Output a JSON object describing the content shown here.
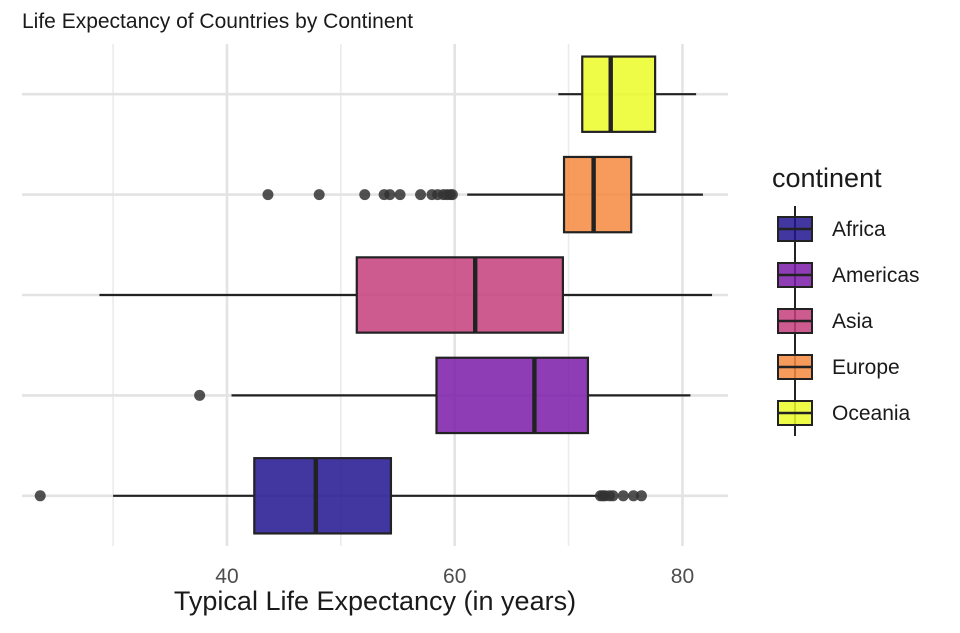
{
  "chart_data": {
    "type": "boxplot",
    "orientation": "horizontal",
    "title": "Life Expectancy of Countries by Continent",
    "xlabel": "Typical Life Expectancy (in years)",
    "ylabel": "",
    "xlim": [
      22,
      84
    ],
    "x_ticks": [
      40,
      60,
      80
    ],
    "x_minor_grid": [
      30,
      50,
      70
    ],
    "grid": true,
    "legend": {
      "title": "continent",
      "position": "right"
    },
    "series": [
      {
        "name": "Africa",
        "color": "#211391",
        "whisker_low": 30.0,
        "q1": 42.4,
        "median": 47.8,
        "q3": 54.4,
        "whisker_high": 73.0,
        "outliers": [
          23.6,
          72.8,
          73.0,
          73.2,
          73.6,
          73.9,
          74.8,
          75.7,
          76.4
        ]
      },
      {
        "name": "Americas",
        "color": "#7a1ba8",
        "whisker_low": 40.4,
        "q1": 58.4,
        "median": 67.0,
        "q3": 71.7,
        "whisker_high": 80.7,
        "outliers": [
          37.6
        ]
      },
      {
        "name": "Asia",
        "color": "#c43e7d",
        "whisker_low": 28.8,
        "q1": 51.4,
        "median": 61.8,
        "q3": 69.5,
        "whisker_high": 82.6,
        "outliers": []
      },
      {
        "name": "Europe",
        "color": "#f58a3e",
        "whisker_low": 61.1,
        "q1": 69.6,
        "median": 72.2,
        "q3": 75.5,
        "whisker_high": 81.8,
        "outliers": [
          43.6,
          48.1,
          52.1,
          53.8,
          54.3,
          55.2,
          57.0,
          58.0,
          58.5,
          59.0,
          59.3,
          59.6,
          59.8
        ]
      },
      {
        "name": "Oceania",
        "color": "#ecfc27",
        "whisker_low": 69.1,
        "q1": 71.2,
        "median": 73.7,
        "q3": 77.6,
        "whisker_high": 81.2,
        "outliers": []
      }
    ]
  }
}
